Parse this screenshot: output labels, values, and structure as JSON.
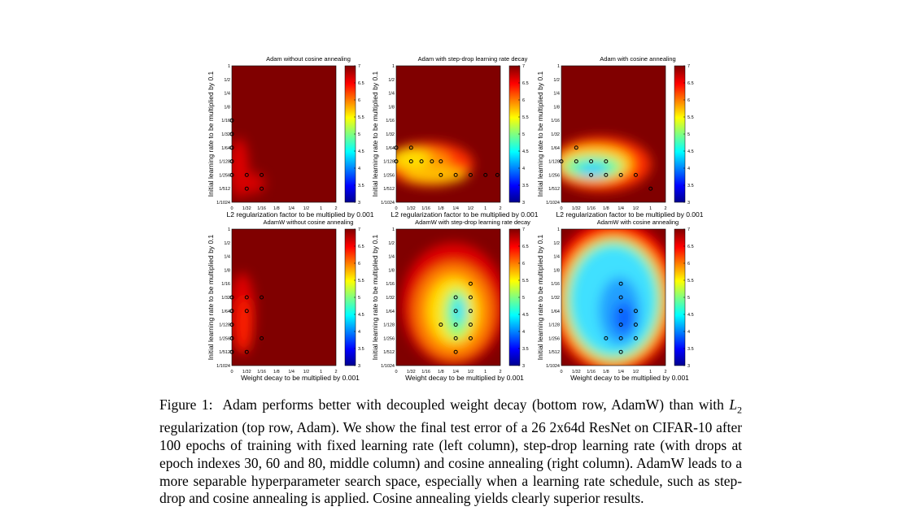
{
  "figure": {
    "panels": [
      {
        "title": "Adam without cosine annealing",
        "x_label": "L2 regularization factor to be multiplied by 0.001",
        "y_label": "Initial learning rate to be multiplied by 0.1"
      },
      {
        "title": "Adam with step-drop learning rate decay",
        "x_label": "L2 regularization factor to be multiplied by 0.001",
        "y_label": "Initial learning rate to be multiplied by 0.1"
      },
      {
        "title": "Adam with cosine annealing",
        "x_label": "L2 regularization factor to be multiplied by 0.001",
        "y_label": "Initial learning rate to be multiplied by 0.1"
      },
      {
        "title": "AdamW without cosine annealing",
        "x_label": "Weight decay to be multiplied by 0.001",
        "y_label": "Initial learning rate to be multiplied by 0.1"
      },
      {
        "title": "AdamW with step-drop learning rate decay",
        "x_label": "Weight decay to be multiplied by 0.001",
        "y_label": "Initial learning rate to be multiplied by 0.1"
      },
      {
        "title": "AdamW with cosine annealing",
        "x_label": "Weight decay to be multiplied by 0.001",
        "y_label": "Initial learning rate to be multiplied by 0.1"
      }
    ],
    "y_tick_labels": [
      "1",
      "1/2",
      "1/4",
      "1/8",
      "1/16",
      "1/32",
      "1/64",
      "1/128",
      "1/256",
      "1/512",
      "1/1024"
    ],
    "x_tick_labels": [
      "0",
      "1/32",
      "1/16",
      "1/8",
      "1/4",
      "1/2",
      "1",
      "2"
    ],
    "colorbar": {
      "range": [
        3,
        7
      ],
      "ticks": [
        7,
        6.5,
        6,
        5.5,
        5,
        4.5,
        4,
        3.5,
        3
      ]
    }
  },
  "caption": {
    "label": "Figure 1:",
    "before": "Adam performs better with decoupled weight decay (bottom row, AdamW) than with",
    "math": "L",
    "sub": "2",
    "after": "regularization (top row, Adam). We show the final test error of a 26 2x64d ResNet on CIFAR-10 after 100 epochs of training with fixed learning rate (left column), step-drop learning rate (with drops at epoch indexes 30, 60 and 80, middle column) and cosine annealing (right column). AdamW leads to a more separable hyperparameter search space, especially when a learning rate schedule, such as step-drop and cosine annealing is applied. Cosine annealing yields clearly superior results."
  }
}
